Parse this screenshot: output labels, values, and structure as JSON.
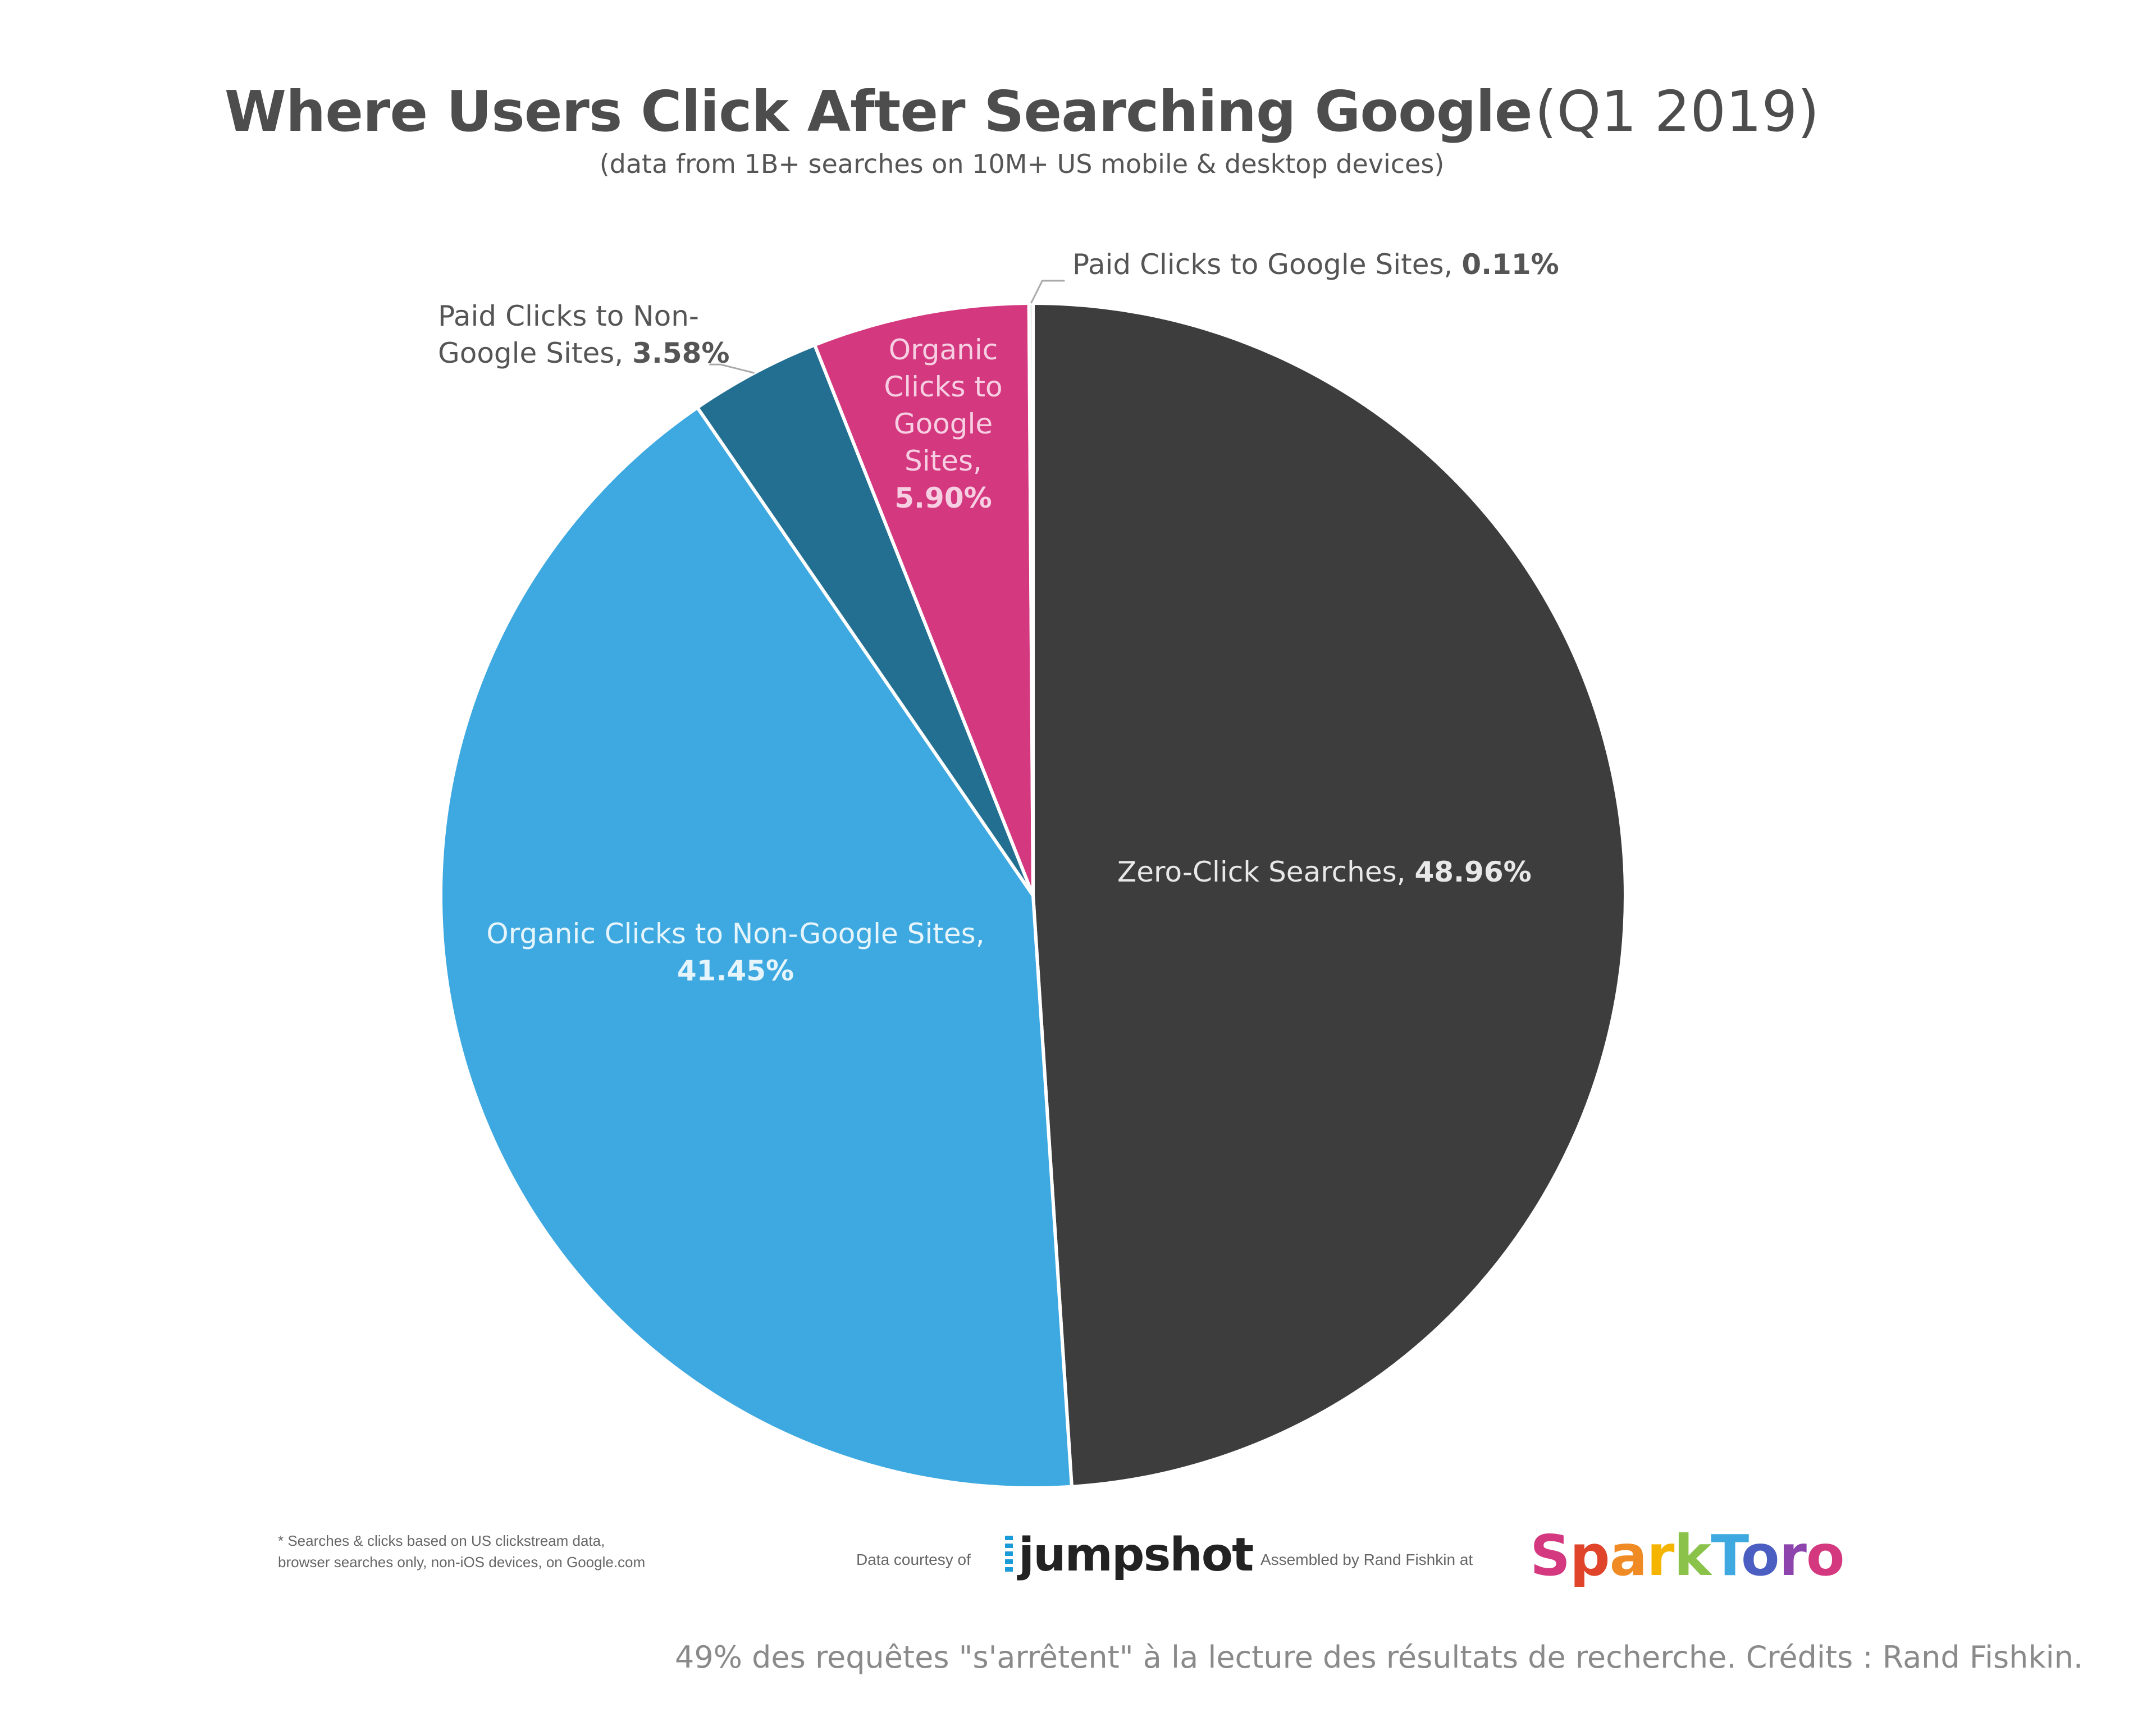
{
  "chart_data": {
    "type": "pie",
    "title": "Where Users Click After Searching Google",
    "title_suffix": "(Q1 2019)",
    "subtitle": "(data from 1B+ searches on 10M+ US mobile & desktop devices)",
    "slices": [
      {
        "name": "Zero-Click Searches,",
        "value": 48.96,
        "value_label": "48.96%",
        "color": "#3d3d3d"
      },
      {
        "name": "Organic Clicks to Non-Google Sites,",
        "value": 41.45,
        "value_label": "41.45%",
        "color": "#3ea9e0"
      },
      {
        "name": "Paid Clicks to Non-Google Sites,",
        "name_lines": [
          "Paid Clicks to Non-",
          "Google Sites,"
        ],
        "value": 3.58,
        "value_label": "3.58%",
        "color": "#236f91"
      },
      {
        "name": "Organic Clicks to Google Sites,",
        "name_lines": [
          "Organic",
          "Clicks to",
          "Google",
          "Sites,"
        ],
        "value": 5.9,
        "value_label": "5.90%",
        "color": "#d4387f"
      },
      {
        "name": "Paid Clicks to Google Sites,",
        "value": 0.11,
        "value_label": "0.11%",
        "color": "#c8c8c8"
      }
    ],
    "start_angle": "12 o'clock",
    "direction": "clockwise"
  },
  "footer": {
    "footnote_line1": "* Searches & clicks based on US clickstream data,",
    "footnote_line2": "browser searches only, non-iOS devices, on Google.com",
    "courtesy": "Data courtesy of",
    "jumpshot": "jumpshot",
    "assembled": "Assembled by Rand Fishkin at",
    "sparktoro_letters": [
      "S",
      "p",
      "a",
      "r",
      "k",
      "T",
      "o",
      "r",
      "o"
    ],
    "sparktoro_colors": [
      "#d4387f",
      "#e0452c",
      "#f08a24",
      "#f4b400",
      "#8bc34a",
      "#3ea9e0",
      "#4a5fc1",
      "#8e44ad",
      "#d4387f"
    ]
  },
  "caption": "49% des requêtes \"s'arrêtent\" à la lecture des résultats de recherche. Crédits : Rand Fishkin."
}
